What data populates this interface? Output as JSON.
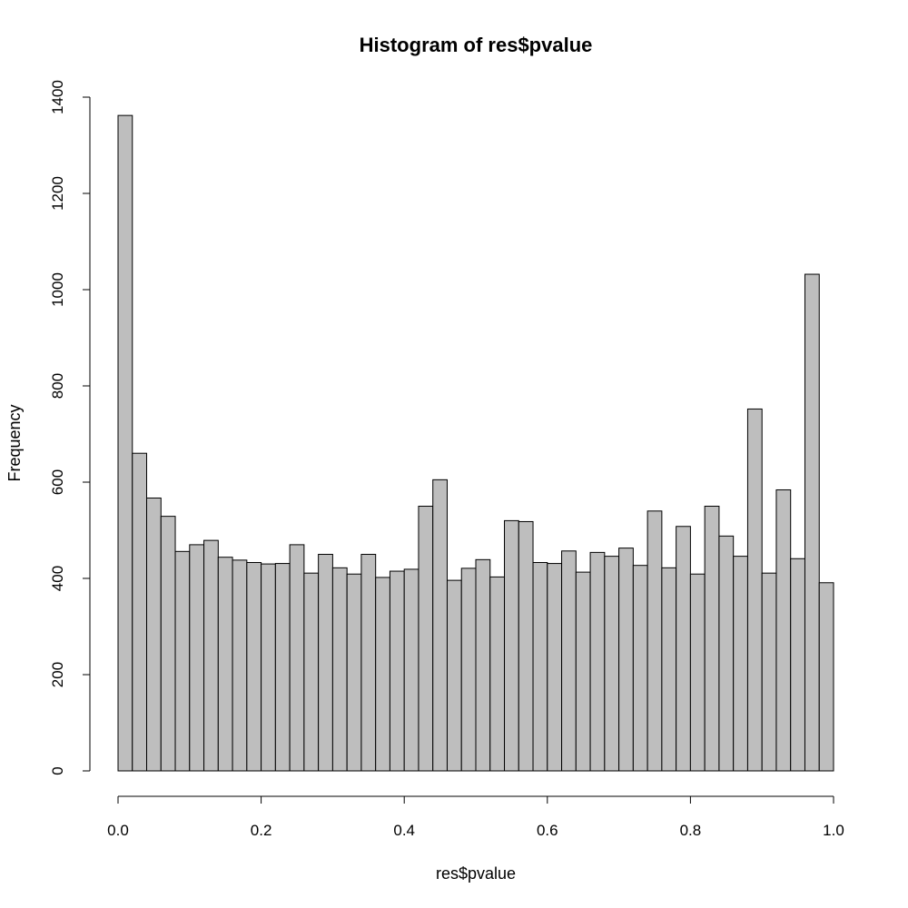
{
  "chart_data": {
    "type": "bar",
    "title": "Histogram of res$pvalue",
    "xlabel": "res$pvalue",
    "ylabel": "Frequency",
    "xlim": [
      0,
      1
    ],
    "ylim": [
      0,
      1400
    ],
    "bin_width": 0.02,
    "x_ticks": [
      "0.0",
      "0.2",
      "0.4",
      "0.6",
      "0.8",
      "1.0"
    ],
    "y_ticks": [
      "0",
      "200",
      "400",
      "600",
      "800",
      "1000",
      "1200",
      "1400"
    ],
    "grid": false,
    "values": [
      1362,
      660,
      567,
      529,
      456,
      470,
      479,
      444,
      438,
      433,
      430,
      431,
      470,
      411,
      450,
      422,
      409,
      450,
      402,
      415,
      419,
      550,
      605,
      396,
      421,
      439,
      403,
      520,
      518,
      433,
      431,
      457,
      413,
      454,
      446,
      463,
      427,
      540,
      422,
      508,
      409,
      550,
      488,
      446,
      752,
      411,
      584,
      441,
      1032,
      391
    ]
  }
}
